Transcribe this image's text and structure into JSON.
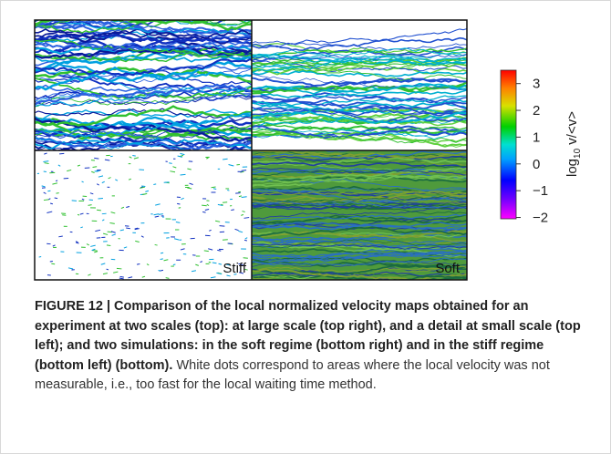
{
  "figure": {
    "panels": [
      {
        "label": "Stiff"
      },
      {
        "label": "Soft"
      }
    ],
    "colorbar": {
      "label": {
        "base": "log",
        "subscript": "10",
        "rest": " v/<v>"
      },
      "lim": [
        -2.05,
        3.5
      ],
      "ticks": [
        3,
        2,
        1,
        0,
        {
          "value": -1,
          "label": "−1"
        },
        {
          "value": -2,
          "label": "−2"
        }
      ]
    }
  },
  "caption": {
    "bold": "FIGURE 12 | Comparison of the local normalized velocity maps obtained for an experiment at two scales (top): at large scale (top right), and a detail at small scale (top left); and two simulations: in the soft regime (bottom right) and in the stiff regime (bottom left) (bottom).",
    "normal": "White dots correspond to areas where the local velocity was not measurable, i.e., too fast for the local waiting time method."
  }
}
